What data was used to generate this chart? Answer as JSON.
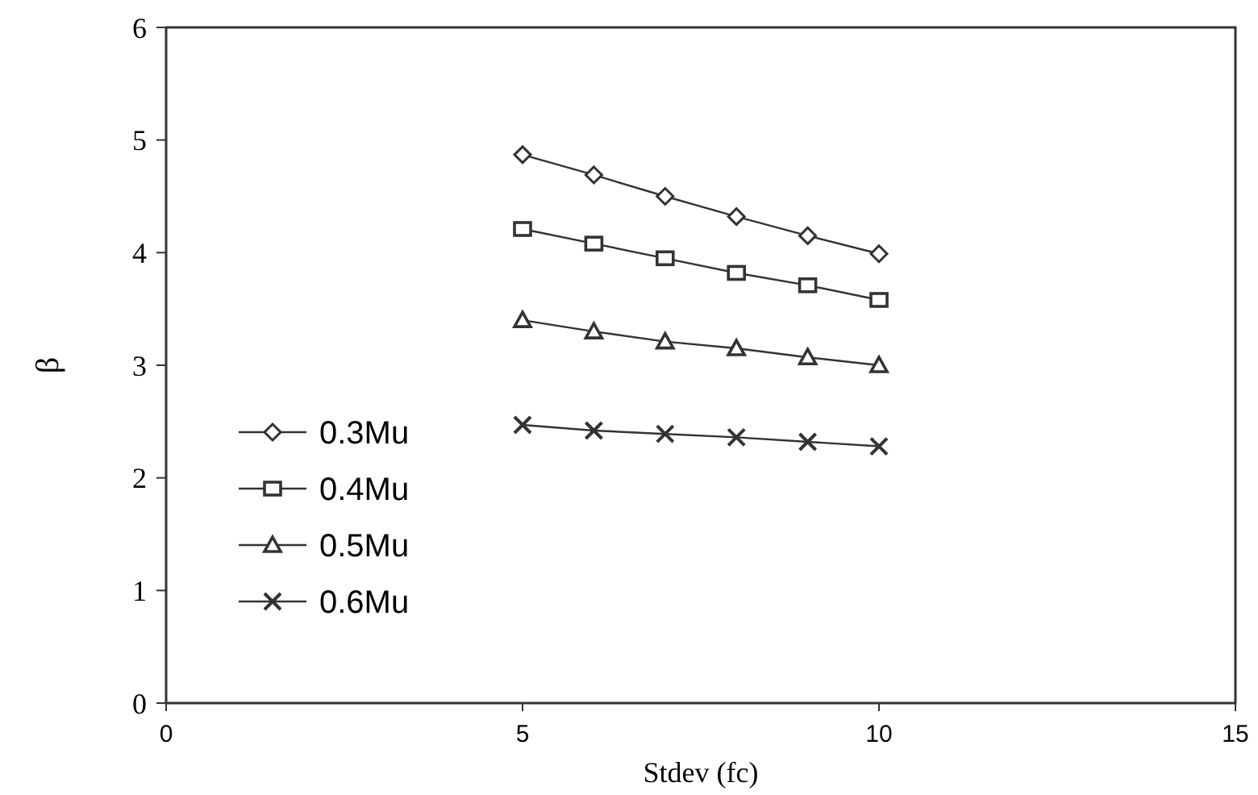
{
  "chart_data": {
    "type": "line",
    "xlabel": "Stdev (fc)",
    "ylabel": "β",
    "x": [
      5,
      6,
      7,
      8,
      9,
      10
    ],
    "xlim": [
      0,
      15
    ],
    "xticks": [
      0,
      5,
      10,
      15
    ],
    "ylim": [
      0,
      6
    ],
    "yticks": [
      0,
      1,
      2,
      3,
      4,
      5,
      6
    ],
    "grid": false,
    "legend": "left",
    "line_style": "solid",
    "series": [
      {
        "name": "0.3Mu",
        "color": "#333333",
        "marker": "diamond",
        "values": [
          4.87,
          4.69,
          4.5,
          4.32,
          4.15,
          3.99
        ]
      },
      {
        "name": "0.4Mu",
        "color": "#333333",
        "marker": "square",
        "values": [
          4.21,
          4.08,
          3.95,
          3.82,
          3.71,
          3.58
        ]
      },
      {
        "name": "0.5Mu",
        "color": "#333333",
        "marker": "triangle",
        "values": [
          3.4,
          3.3,
          3.21,
          3.15,
          3.07,
          3.0
        ]
      },
      {
        "name": "0.6Mu",
        "color": "#333333",
        "marker": "cross",
        "values": [
          2.47,
          2.42,
          2.39,
          2.36,
          2.32,
          2.28
        ]
      }
    ]
  }
}
